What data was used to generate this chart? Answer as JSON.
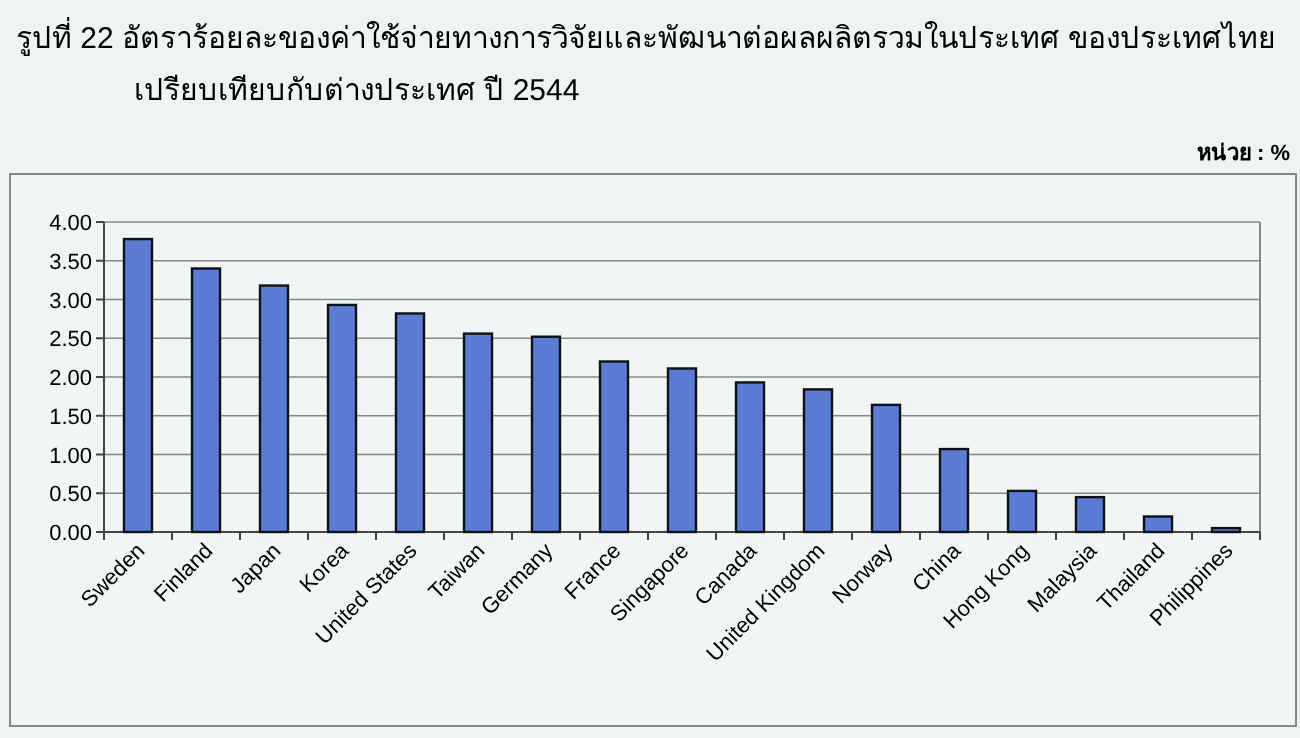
{
  "chart_data": {
    "type": "bar",
    "title": "รูปที่ 22  อัตราร้อยละของค่าใช้จ่ายทางการวิจัยและพัฒนาต่อผลผลิตรวมในประเทศ ของประเทศไทย",
    "subtitle": "เปรียบเทียบกับต่างประเทศ ปี 2544",
    "annotations": [
      "หน่วย : %"
    ],
    "categories": [
      "Sweden",
      "Finland",
      "Japan",
      "Korea",
      "United States",
      "Taiwan",
      "Germany",
      "France",
      "Singapore",
      "Canada",
      "United Kingdom",
      "Norway",
      "China",
      "Hong Kong",
      "Malaysia",
      "Thailand",
      "Philippines"
    ],
    "values": [
      3.78,
      3.4,
      3.18,
      2.93,
      2.82,
      2.56,
      2.52,
      2.2,
      2.11,
      1.93,
      1.84,
      1.64,
      1.07,
      0.53,
      0.45,
      0.2,
      0.05
    ],
    "color": "#5b7bd5",
    "ylim": [
      0,
      4
    ],
    "yticks": [
      {
        "value": 0,
        "label": "0.00"
      },
      {
        "value": 0.5,
        "label": "0.50"
      },
      {
        "value": 1,
        "label": "1.00"
      },
      {
        "value": 1.5,
        "label": "1.50"
      },
      {
        "value": 2,
        "label": "2.00"
      },
      {
        "value": 2.5,
        "label": "2.50"
      },
      {
        "value": 3,
        "label": "3.00"
      },
      {
        "value": 3.5,
        "label": "3.50"
      },
      {
        "value": 4,
        "label": "4.00"
      }
    ],
    "grid": "y"
  }
}
